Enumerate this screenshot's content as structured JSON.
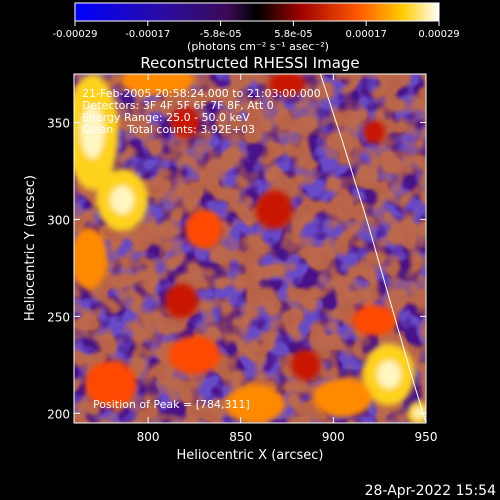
{
  "colorbar": {
    "ticks": [
      "-0.00029",
      "-0.00017",
      "-5.8e-05",
      "5.8e-05",
      "0.00017",
      "0.00029"
    ],
    "unit_label": "(photons cm⁻² s⁻¹ asec⁻²)",
    "range": [
      -0.00029,
      0.00029
    ]
  },
  "chart_data": {
    "type": "heatmap",
    "title": "Reconstructed RHESSI Image",
    "xlabel": "Heliocentric X (arcsec)",
    "ylabel": "Heliocentric Y (arcsec)",
    "xlim": [
      760,
      950
    ],
    "ylim": [
      195,
      375
    ],
    "x_ticks": [
      800,
      850,
      900,
      950
    ],
    "y_ticks": [
      200,
      250,
      300,
      350
    ],
    "grid": false,
    "info_lines": [
      "21-Feb-2005 20:58:24.000 to 21:03:00.000",
      "Detectors: 3F 4F 5F 6F 7F 8F, Att 0",
      "Energy Range: 25.0 - 50.0 keV",
      "Clean    Total counts: 3.92E+03"
    ],
    "peak_label": "Position of Peak = [784,311]",
    "peak_position": [
      784,
      311
    ],
    "limb_curve": [
      [
        893,
        375
      ],
      [
        905,
        340
      ],
      [
        918,
        300
      ],
      [
        930,
        260
      ],
      [
        942,
        220
      ],
      [
        950,
        195
      ]
    ],
    "bright_sources": [
      {
        "x": 770,
        "y": 345,
        "rx": 14,
        "ry": 30,
        "intensity": 1.0
      },
      {
        "x": 786,
        "y": 310,
        "rx": 14,
        "ry": 16,
        "intensity": 1.0
      },
      {
        "x": 768,
        "y": 280,
        "rx": 10,
        "ry": 16,
        "intensity": 0.8
      },
      {
        "x": 805,
        "y": 372,
        "rx": 20,
        "ry": 8,
        "intensity": 0.8
      },
      {
        "x": 820,
        "y": 350,
        "rx": 8,
        "ry": 8,
        "intensity": 0.6
      },
      {
        "x": 830,
        "y": 295,
        "rx": 10,
        "ry": 10,
        "intensity": 0.65
      },
      {
        "x": 868,
        "y": 305,
        "rx": 10,
        "ry": 10,
        "intensity": 0.6
      },
      {
        "x": 818,
        "y": 258,
        "rx": 9,
        "ry": 9,
        "intensity": 0.55
      },
      {
        "x": 780,
        "y": 215,
        "rx": 14,
        "ry": 12,
        "intensity": 0.75
      },
      {
        "x": 825,
        "y": 230,
        "rx": 14,
        "ry": 10,
        "intensity": 0.7
      },
      {
        "x": 858,
        "y": 205,
        "rx": 16,
        "ry": 10,
        "intensity": 0.85
      },
      {
        "x": 885,
        "y": 225,
        "rx": 8,
        "ry": 8,
        "intensity": 0.55
      },
      {
        "x": 922,
        "y": 248,
        "rx": 12,
        "ry": 8,
        "intensity": 0.75
      },
      {
        "x": 930,
        "y": 220,
        "rx": 14,
        "ry": 16,
        "intensity": 1.0
      },
      {
        "x": 905,
        "y": 208,
        "rx": 16,
        "ry": 10,
        "intensity": 0.9
      },
      {
        "x": 946,
        "y": 200,
        "rx": 6,
        "ry": 6,
        "intensity": 1.0
      },
      {
        "x": 875,
        "y": 370,
        "rx": 10,
        "ry": 6,
        "intensity": 0.6
      },
      {
        "x": 922,
        "y": 345,
        "rx": 6,
        "ry": 6,
        "intensity": 0.5
      }
    ]
  },
  "timestamp": "28-Apr-2022 15:54"
}
